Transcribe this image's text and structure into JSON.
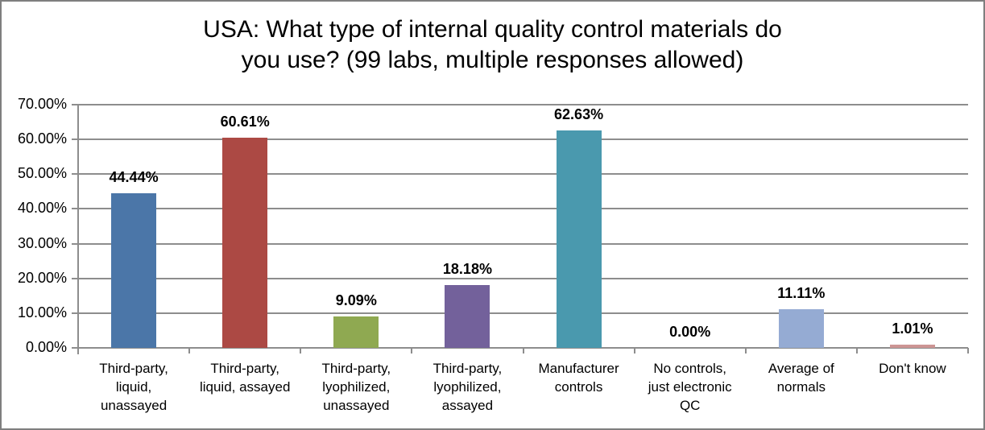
{
  "chart_data": {
    "type": "bar",
    "title": "USA: What type of internal quality control materials do you use? (99 labs, multiple responses allowed)",
    "title_lines": [
      "USA: What type of internal quality control materials do",
      "you use? (99 labs, multiple responses allowed)"
    ],
    "categories": [
      "Third-party, liquid, unassayed",
      "Third-party, liquid, assayed",
      "Third-party, lyophilized, unassayed",
      "Third-party, lyophilized, assayed",
      "Manufacturer controls",
      "No controls, just electronic QC",
      "Average of normals",
      "Don't know"
    ],
    "category_lines": [
      [
        "Third-party,",
        "liquid,",
        "unassayed"
      ],
      [
        "Third-party,",
        "liquid, assayed"
      ],
      [
        "Third-party,",
        "lyophilized,",
        "unassayed"
      ],
      [
        "Third-party,",
        "lyophilized,",
        "assayed"
      ],
      [
        "Manufacturer",
        "controls"
      ],
      [
        "No controls,",
        "just electronic",
        "QC"
      ],
      [
        "Average of",
        "normals"
      ],
      [
        "Don't know"
      ]
    ],
    "values": [
      44.44,
      60.61,
      9.09,
      18.18,
      62.63,
      0.0,
      11.11,
      1.01
    ],
    "value_labels": [
      "44.44%",
      "60.61%",
      "9.09%",
      "18.18%",
      "62.63%",
      "0.00%",
      "11.11%",
      "1.01%"
    ],
    "bar_colors": [
      "#4b76a8",
      "#ac4944",
      "#8fa951",
      "#73619b",
      "#4a99ae",
      null,
      "#95abd3",
      "#cd9594"
    ],
    "xlabel": "",
    "ylabel": "",
    "ylim": [
      0,
      70
    ],
    "ytick_step": 10,
    "ytick_labels": [
      "0.00%",
      "10.00%",
      "20.00%",
      "30.00%",
      "40.00%",
      "50.00%",
      "60.00%",
      "70.00%"
    ],
    "grid": true,
    "legend": "none",
    "axis_color": "#8d8d8d",
    "text_color": "#000000",
    "frame_border_color": "#7f7f7f",
    "background_color": "#ffffff"
  }
}
